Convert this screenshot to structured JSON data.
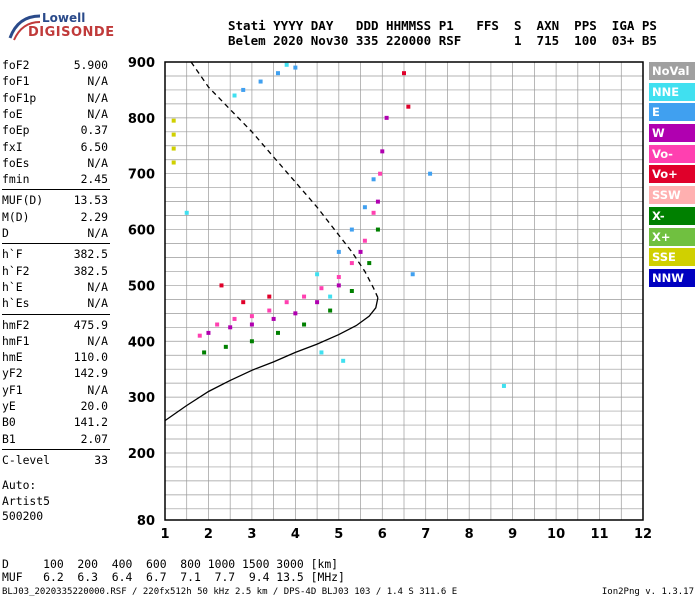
{
  "logo": {
    "line1": "Lowell",
    "line2": "DIGISONDE"
  },
  "header": {
    "labels": "Stati YYYY DAY   DDD HHMMSS P1   FFS  S  AXN  PPS  IGA PS",
    "values": "Belem 2020 Nov30 335 220000 RSF       1  715  100  03+ B5"
  },
  "params": {
    "group1": [
      {
        "k": "foF2",
        "v": "5.900"
      },
      {
        "k": "foF1",
        "v": "N/A"
      },
      {
        "k": "foF1p",
        "v": "N/A"
      },
      {
        "k": "foE",
        "v": "N/A"
      },
      {
        "k": "foEp",
        "v": "0.37"
      },
      {
        "k": "fxI",
        "v": "6.50"
      },
      {
        "k": "foEs",
        "v": "N/A"
      },
      {
        "k": "fmin",
        "v": "2.45"
      }
    ],
    "group2": [
      {
        "k": "MUF(D)",
        "v": "13.53"
      },
      {
        "k": "M(D)",
        "v": "2.29"
      },
      {
        "k": "D",
        "v": "N/A"
      }
    ],
    "group3": [
      {
        "k": "h`F",
        "v": "382.5"
      },
      {
        "k": "h`F2",
        "v": "382.5"
      },
      {
        "k": "h`E",
        "v": "N/A"
      },
      {
        "k": "h`Es",
        "v": "N/A"
      }
    ],
    "group4": [
      {
        "k": "hmF2",
        "v": "475.9"
      },
      {
        "k": "hmF1",
        "v": "N/A"
      },
      {
        "k": "hmE",
        "v": "110.0"
      },
      {
        "k": "yF2",
        "v": "142.9"
      },
      {
        "k": "yF1",
        "v": "N/A"
      },
      {
        "k": "yE",
        "v": "20.0"
      },
      {
        "k": "B0",
        "v": "141.2"
      },
      {
        "k": "B1",
        "v": "2.07"
      }
    ],
    "group5": [
      {
        "k": "C-level",
        "v": "33"
      }
    ]
  },
  "auto": {
    "l1": "Auto:",
    "l2": "Artist5",
    "l3": "500200"
  },
  "dmuf": {
    "d_row": "D     100  200  400  600  800 1000 1500 3000 [km]",
    "muf_row": "MUF   6.2  6.3  6.4  6.7  7.1  7.7  9.4 13.5 [MHz]"
  },
  "footer": {
    "left": "BLJ03_2020335220000.RSF / 220fx512h 50 kHz 2.5 km / DPS-4D BLJ03 103 / 1.4 S 311.6 E",
    "right": "Ion2Png v. 1.3.17"
  },
  "legend": [
    {
      "label": "NoVal",
      "color": "#a0a0a0"
    },
    {
      "label": "NNE",
      "color": "#40e0f0"
    },
    {
      "label": "E",
      "color": "#40a0f0"
    },
    {
      "label": "W",
      "color": "#b000b0"
    },
    {
      "label": "Vo-",
      "color": "#ff40b0"
    },
    {
      "label": "Vo+",
      "color": "#e0002a"
    },
    {
      "label": "SSW",
      "color": "#ffb0b0"
    },
    {
      "label": "X-",
      "color": "#008000"
    },
    {
      "label": "X+",
      "color": "#70c040"
    },
    {
      "label": "SSE",
      "color": "#d0d000"
    },
    {
      "label": "NNW",
      "color": "#0000c0"
    }
  ],
  "chart_data": {
    "type": "scatter",
    "xlabel": "",
    "ylabel": "",
    "xlim": [
      1,
      12
    ],
    "ylim": [
      80,
      900
    ],
    "x_ticks": [
      "1",
      "2",
      "3",
      "4",
      "5",
      "6",
      "7",
      "8",
      "9",
      "10",
      "11",
      "12"
    ],
    "y_ticks": [
      "80",
      "200",
      "300",
      "400",
      "500",
      "600",
      "700",
      "800",
      "900"
    ],
    "grid": true,
    "series": [
      {
        "color": "#ff40b0",
        "points": [
          [
            1.8,
            410
          ],
          [
            2.2,
            430
          ],
          [
            2.6,
            440
          ],
          [
            3.0,
            445
          ],
          [
            3.4,
            455
          ],
          [
            3.8,
            470
          ],
          [
            4.2,
            480
          ],
          [
            4.6,
            495
          ],
          [
            5.0,
            515
          ],
          [
            5.3,
            540
          ],
          [
            5.6,
            580
          ],
          [
            5.8,
            630
          ],
          [
            5.95,
            700
          ]
        ]
      },
      {
        "color": "#b000b0",
        "points": [
          [
            2.0,
            415
          ],
          [
            2.5,
            425
          ],
          [
            3.0,
            430
          ],
          [
            3.5,
            440
          ],
          [
            4.0,
            450
          ],
          [
            4.5,
            470
          ],
          [
            5.0,
            500
          ],
          [
            5.5,
            560
          ],
          [
            5.9,
            650
          ],
          [
            6.0,
            740
          ],
          [
            6.1,
            800
          ]
        ]
      },
      {
        "color": "#008000",
        "points": [
          [
            1.9,
            380
          ],
          [
            2.4,
            390
          ],
          [
            3.0,
            400
          ],
          [
            3.6,
            415
          ],
          [
            4.2,
            430
          ],
          [
            4.8,
            455
          ],
          [
            5.3,
            490
          ],
          [
            5.7,
            540
          ],
          [
            5.9,
            600
          ]
        ]
      },
      {
        "color": "#40a0f0",
        "points": [
          [
            2.8,
            850
          ],
          [
            3.2,
            865
          ],
          [
            3.6,
            880
          ],
          [
            4.0,
            890
          ],
          [
            5.0,
            560
          ],
          [
            5.3,
            600
          ],
          [
            5.6,
            640
          ],
          [
            5.8,
            690
          ],
          [
            6.7,
            520
          ],
          [
            7.1,
            700
          ]
        ]
      },
      {
        "color": "#40e0f0",
        "points": [
          [
            2.6,
            840
          ],
          [
            3.8,
            895
          ],
          [
            4.5,
            520
          ],
          [
            4.8,
            480
          ],
          [
            1.5,
            630
          ],
          [
            8.8,
            320
          ],
          [
            5.1,
            365
          ],
          [
            4.6,
            380
          ]
        ]
      },
      {
        "color": "#e0002a",
        "points": [
          [
            2.3,
            500
          ],
          [
            2.8,
            470
          ],
          [
            3.4,
            480
          ],
          [
            6.6,
            820
          ],
          [
            6.5,
            880
          ]
        ]
      },
      {
        "color": "#d0d000",
        "points": [
          [
            1.2,
            720
          ],
          [
            1.2,
            745
          ],
          [
            1.2,
            770
          ],
          [
            1.2,
            795
          ]
        ]
      }
    ],
    "traces": [
      {
        "name": "",
        "style": "solid",
        "points": [
          [
            1.0,
            258
          ],
          [
            1.5,
            285
          ],
          [
            2.0,
            310
          ],
          [
            2.5,
            330
          ],
          [
            3.0,
            348
          ],
          [
            3.5,
            363
          ],
          [
            4.0,
            380
          ],
          [
            4.5,
            395
          ],
          [
            5.0,
            412
          ],
          [
            5.4,
            428
          ],
          [
            5.7,
            445
          ],
          [
            5.85,
            460
          ],
          [
            5.9,
            478
          ]
        ]
      },
      {
        "name": "",
        "style": "dashed",
        "points": [
          [
            1.6,
            900
          ],
          [
            2.0,
            855
          ],
          [
            2.5,
            815
          ],
          [
            3.0,
            775
          ],
          [
            3.5,
            730
          ],
          [
            4.0,
            685
          ],
          [
            4.5,
            640
          ],
          [
            5.0,
            590
          ],
          [
            5.3,
            560
          ],
          [
            5.6,
            525
          ],
          [
            5.8,
            495
          ],
          [
            5.9,
            478
          ]
        ]
      }
    ]
  }
}
